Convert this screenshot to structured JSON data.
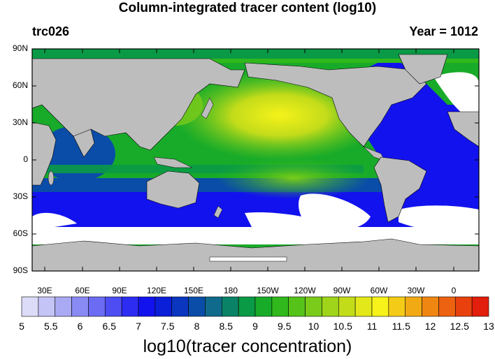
{
  "title": "Column-integrated tracer content (log10)",
  "subtitle_left": "trc026",
  "subtitle_right": "Year = 1012",
  "lat_labels": [
    "90N",
    "60N",
    "30N",
    "0",
    "30S",
    "60S",
    "90S"
  ],
  "lon_labels": [
    "30E",
    "60E",
    "90E",
    "120E",
    "150E",
    "180",
    "150W",
    "120W",
    "90W",
    "60W",
    "30W",
    "0"
  ],
  "colorbar": {
    "labels": [
      "5",
      "5.5",
      "6",
      "6.5",
      "7",
      "7.5",
      "8",
      "8.5",
      "9",
      "9.5",
      "10",
      "10.5",
      "11",
      "11.5",
      "12",
      "12.5",
      "13"
    ],
    "colors": [
      "#dcdcf8",
      "#c4c4f6",
      "#a9a9f4",
      "#8a8af4",
      "#6b6bf3",
      "#4d4df3",
      "#2c2cf2",
      "#1212ef",
      "#0b1fd8",
      "#0a36c0",
      "#0a4da8",
      "#0f6a8b",
      "#0a8266",
      "#0a9a46",
      "#18ab29",
      "#30b81c",
      "#55c31a",
      "#7acb1a",
      "#9fd41a",
      "#c3dc1a",
      "#e3e81a",
      "#f6f21a",
      "#f4cc17",
      "#f2aa14",
      "#ef8612",
      "#ec6210",
      "#e8410e",
      "#e21e0c"
    ],
    "units": "log10(tracer concentration)"
  },
  "map": {
    "ocean_high_color": "#e3e81a",
    "ocean_mid_color": "#30b81c",
    "ocean_low_color": "#1212ef",
    "land_color": "#bdbdbd",
    "missing_color": "#ffffff"
  }
}
